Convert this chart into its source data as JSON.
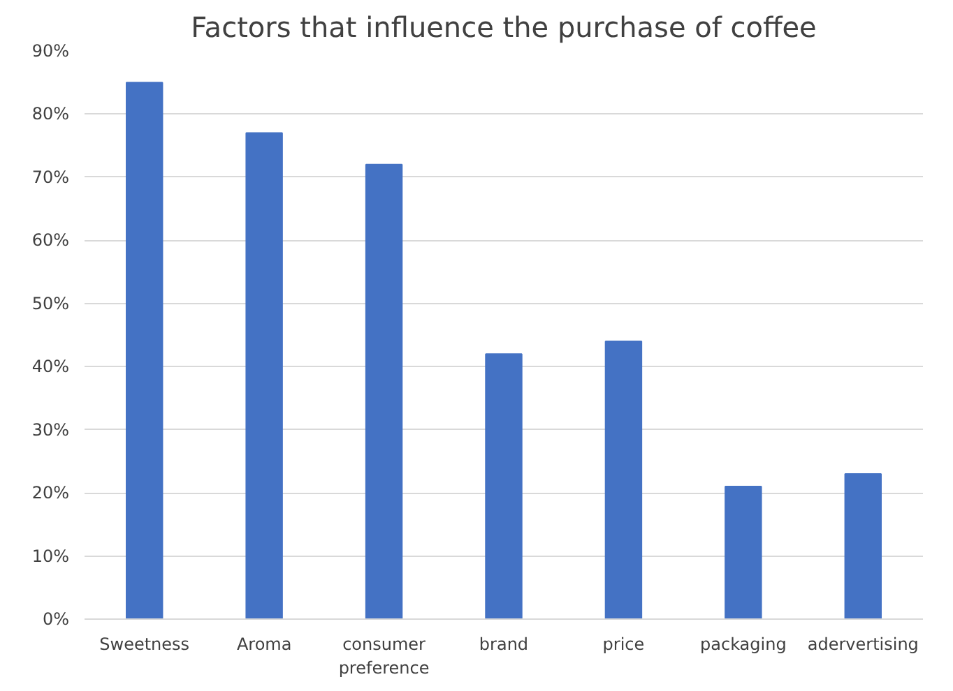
{
  "chart_data": {
    "type": "bar",
    "title": "Factors that influence the purchase of coffee",
    "categories": [
      "Sweetness",
      "Aroma",
      "consumer preference",
      "brand",
      "price",
      "packaging",
      "adervertising"
    ],
    "values": [
      85,
      77,
      72,
      42,
      44,
      21,
      23
    ],
    "color": "#4472c4",
    "ylim": [
      0,
      90
    ],
    "yticks": [
      {
        "value": 0,
        "label": "0%"
      },
      {
        "value": 10,
        "label": "10%"
      },
      {
        "value": 20,
        "label": "20%"
      },
      {
        "value": 30,
        "label": "30%"
      },
      {
        "value": 40,
        "label": "40%"
      },
      {
        "value": 50,
        "label": "50%"
      },
      {
        "value": 60,
        "label": "60%"
      },
      {
        "value": 70,
        "label": "70%"
      },
      {
        "value": 80,
        "label": "80%"
      },
      {
        "value": 90,
        "label": "90%"
      }
    ],
    "grid": "y"
  }
}
